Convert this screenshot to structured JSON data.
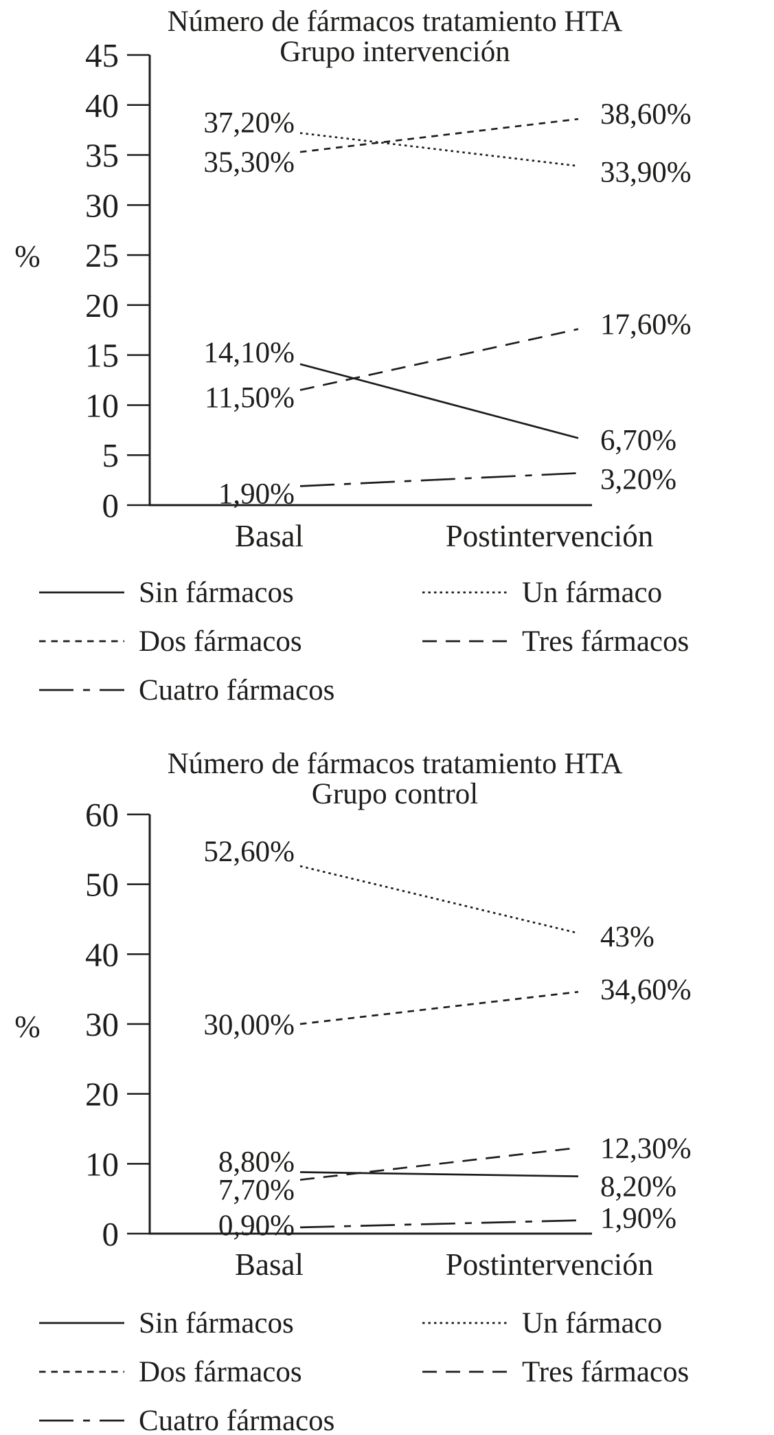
{
  "figure": {
    "background": "#ffffff",
    "ink_color": "#1d1d1b"
  },
  "chart_data": [
    {
      "type": "line",
      "title": "Número de fármacos tratamiento HTA",
      "subtitle": "Grupo intervención",
      "xlabel": "",
      "ylabel": "%",
      "categories": [
        "Basal",
        "Postintervención"
      ],
      "ylim": [
        0,
        45
      ],
      "ytick_interval": 5,
      "yticks": [
        0,
        5,
        10,
        15,
        20,
        25,
        30,
        35,
        40,
        45
      ],
      "grid": false,
      "legend_position": "below-chart",
      "series": [
        {
          "name": "Sin fármacos",
          "line_style": "solid",
          "values": [
            14.1,
            6.7
          ],
          "point_labels": [
            "14,10%",
            "6,70%"
          ]
        },
        {
          "name": "Un fármaco",
          "line_style": "dotted",
          "values": [
            37.2,
            33.9
          ],
          "point_labels": [
            "37,20%",
            "33,90%"
          ]
        },
        {
          "name": "Dos fármacos",
          "line_style": "dashed-short",
          "values": [
            35.3,
            38.6
          ],
          "point_labels": [
            "35,30%",
            "38,60%"
          ]
        },
        {
          "name": "Tres fármacos",
          "line_style": "dashed-long",
          "values": [
            11.5,
            17.6
          ],
          "point_labels": [
            "11,50%",
            "17,60%"
          ]
        },
        {
          "name": "Cuatro fármacos",
          "line_style": "dash-dot",
          "values": [
            1.9,
            3.2
          ],
          "point_labels": [
            "1,90%",
            "3,20%"
          ]
        }
      ]
    },
    {
      "type": "line",
      "title": "Número de fármacos tratamiento HTA",
      "subtitle": "Grupo control",
      "xlabel": "",
      "ylabel": "%",
      "categories": [
        "Basal",
        "Postintervención"
      ],
      "ylim": [
        0,
        60
      ],
      "ytick_interval": 10,
      "yticks": [
        0,
        10,
        20,
        30,
        40,
        50,
        60
      ],
      "grid": false,
      "legend_position": "below-chart",
      "series": [
        {
          "name": "Sin fármacos",
          "line_style": "solid",
          "values": [
            8.8,
            8.2
          ],
          "point_labels": [
            "8,80%",
            "8,20%"
          ]
        },
        {
          "name": "Un fármaco",
          "line_style": "dotted",
          "values": [
            52.6,
            43.0
          ],
          "point_labels": [
            "52,60%",
            "43%"
          ]
        },
        {
          "name": "Dos fármacos",
          "line_style": "dashed-short",
          "values": [
            30.0,
            34.6
          ],
          "point_labels": [
            "30,00%",
            "34,60%"
          ]
        },
        {
          "name": "Tres fármacos",
          "line_style": "dashed-long",
          "values": [
            7.7,
            12.3
          ],
          "point_labels": [
            "7,70%",
            "12,30%"
          ]
        },
        {
          "name": "Cuatro fármacos",
          "line_style": "dash-dot",
          "values": [
            0.9,
            1.9
          ],
          "point_labels": [
            "0,90%",
            "1,90%"
          ]
        }
      ]
    }
  ]
}
